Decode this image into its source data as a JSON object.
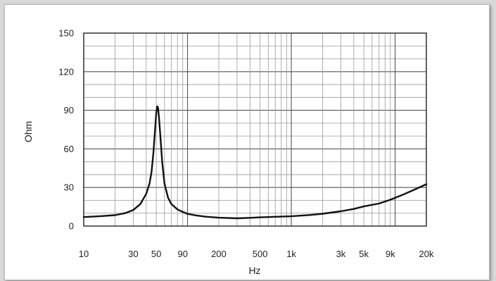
{
  "chart_data": {
    "type": "line",
    "xlabel": "Hz",
    "ylabel": "Ohm",
    "x_scale": "log",
    "xlim": [
      10,
      20000
    ],
    "ylim": [
      0,
      150
    ],
    "grid": true,
    "y_ticks": [
      "0",
      "30",
      "60",
      "90",
      "120",
      "150"
    ],
    "y_tick_values": [
      0,
      30,
      60,
      90,
      120,
      150
    ],
    "x_ticks": [
      "10",
      "30",
      "50",
      "90",
      "200",
      "500",
      "1k",
      "3k",
      "5k",
      "9k",
      "20k"
    ],
    "x_tick_values": [
      10,
      30,
      50,
      90,
      200,
      500,
      1000,
      3000,
      5000,
      9000,
      20000
    ],
    "series": [
      {
        "color": "#111111",
        "x": [
          10,
          15,
          20,
          25,
          30,
          35,
          40,
          43,
          45,
          47,
          49,
          50,
          51,
          52,
          53,
          55,
          57,
          60,
          65,
          70,
          80,
          90,
          100,
          120,
          150,
          200,
          300,
          400,
          500,
          700,
          1000,
          1500,
          2000,
          3000,
          4000,
          5000,
          7000,
          9000,
          12000,
          15000,
          20000
        ],
        "y": [
          7,
          7.8,
          8.5,
          10,
          12.5,
          17,
          25,
          33,
          42,
          58,
          78,
          88,
          93,
          92,
          85,
          68,
          50,
          33,
          22,
          17,
          13,
          11,
          9.5,
          8.3,
          7.3,
          6.5,
          6,
          6.4,
          6.8,
          7.2,
          7.6,
          8.6,
          9.6,
          11.5,
          13.3,
          15.3,
          17.5,
          20.5,
          24.5,
          28,
          32.5
        ]
      }
    ]
  }
}
